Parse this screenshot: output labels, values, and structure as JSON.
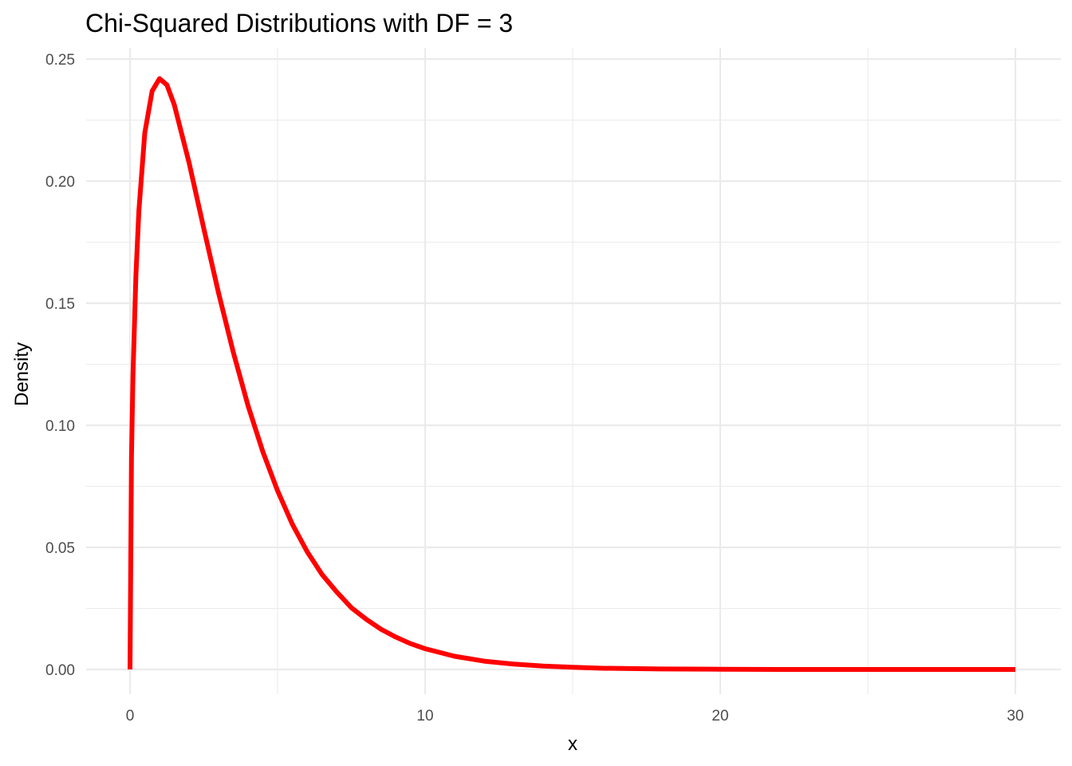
{
  "chart_data": {
    "type": "line",
    "title": "Chi-Squared Distributions with DF = 3",
    "xlabel": "x",
    "ylabel": "Density",
    "xlim": [
      0,
      30
    ],
    "ylim": [
      0,
      0.25
    ],
    "xticks": [
      0,
      10,
      20,
      30
    ],
    "yticks": [
      0.0,
      0.05,
      0.1,
      0.15,
      0.2,
      0.25
    ],
    "xtick_labels": [
      "0",
      "10",
      "20",
      "30"
    ],
    "ytick_labels": [
      "0.00",
      "0.05",
      "0.10",
      "0.15",
      "0.20",
      "0.25"
    ],
    "grid": true,
    "legend": "none",
    "series": [
      {
        "color": "#ff0000",
        "x": [
          0,
          0.05,
          0.1,
          0.2,
          0.3,
          0.5,
          0.75,
          1,
          1.25,
          1.5,
          2,
          2.5,
          3,
          3.5,
          4,
          4.5,
          5,
          5.5,
          6,
          6.5,
          7,
          7.5,
          8,
          8.5,
          9,
          9.5,
          10,
          11,
          12,
          13,
          14,
          15,
          16,
          18,
          20,
          22,
          24,
          26,
          28,
          30
        ],
        "y": [
          0,
          0.0872,
          0.1204,
          0.1614,
          0.1878,
          0.2197,
          0.2369,
          0.242,
          0.2394,
          0.2313,
          0.2076,
          0.1806,
          0.1542,
          0.1299,
          0.108,
          0.0892,
          0.0732,
          0.0595,
          0.0483,
          0.039,
          0.0318,
          0.0253,
          0.0206,
          0.0165,
          0.0133,
          0.0106,
          0.0085,
          0.0054,
          0.0034,
          0.0022,
          0.0014,
          0.0009,
          0.0005,
          0.0002,
          0.0001,
          0.0,
          0.0,
          0.0,
          0.0,
          0.0
        ]
      }
    ]
  }
}
